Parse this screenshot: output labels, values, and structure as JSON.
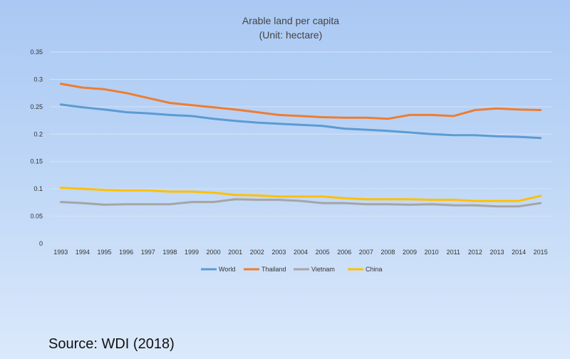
{
  "chart_data": {
    "type": "line",
    "title": "Arable land per capita",
    "subtitle": "(Unit: hectare)",
    "x": [
      "1993",
      "1994",
      "1995",
      "1996",
      "1997",
      "1998",
      "1999",
      "2000",
      "2001",
      "2002",
      "2003",
      "2004",
      "2005",
      "2006",
      "2007",
      "2008",
      "2009",
      "2010",
      "2011",
      "2012",
      "2013",
      "2014",
      "2015"
    ],
    "yticks": [
      "0",
      "0.05",
      "0.1",
      "0.15",
      "0.2",
      "0.25",
      "0.3",
      "0.35"
    ],
    "ylim": [
      0,
      0.35
    ],
    "grid": true,
    "legend_position": "bottom",
    "series": [
      {
        "name": "World",
        "color": "#5b9bd5",
        "values": [
          0.254,
          0.249,
          0.245,
          0.24,
          0.238,
          0.235,
          0.233,
          0.228,
          0.224,
          0.221,
          0.219,
          0.217,
          0.215,
          0.21,
          0.208,
          0.206,
          0.203,
          0.2,
          0.198,
          0.198,
          0.196,
          0.195,
          0.193
        ]
      },
      {
        "name": "Thailand",
        "color": "#ed7d31",
        "values": [
          0.292,
          0.285,
          0.282,
          0.275,
          0.266,
          0.257,
          0.253,
          0.249,
          0.245,
          0.24,
          0.235,
          0.233,
          0.231,
          0.23,
          0.23,
          0.228,
          0.235,
          0.235,
          0.233,
          0.244,
          0.247,
          0.245,
          0.244
        ]
      },
      {
        "name": "Vietnam",
        "color": "#a5a5a5",
        "values": [
          0.076,
          0.074,
          0.071,
          0.072,
          0.072,
          0.072,
          0.076,
          0.076,
          0.081,
          0.08,
          0.08,
          0.078,
          0.074,
          0.074,
          0.072,
          0.072,
          0.071,
          0.072,
          0.07,
          0.07,
          0.068,
          0.068,
          0.074
        ]
      },
      {
        "name": "China",
        "color": "#ffc000",
        "values": [
          0.102,
          0.1,
          0.098,
          0.097,
          0.097,
          0.095,
          0.095,
          0.093,
          0.089,
          0.088,
          0.086,
          0.086,
          0.086,
          0.083,
          0.081,
          0.081,
          0.081,
          0.08,
          0.08,
          0.078,
          0.078,
          0.078,
          0.087
        ]
      }
    ]
  },
  "source": "Source: WDI (2018)"
}
